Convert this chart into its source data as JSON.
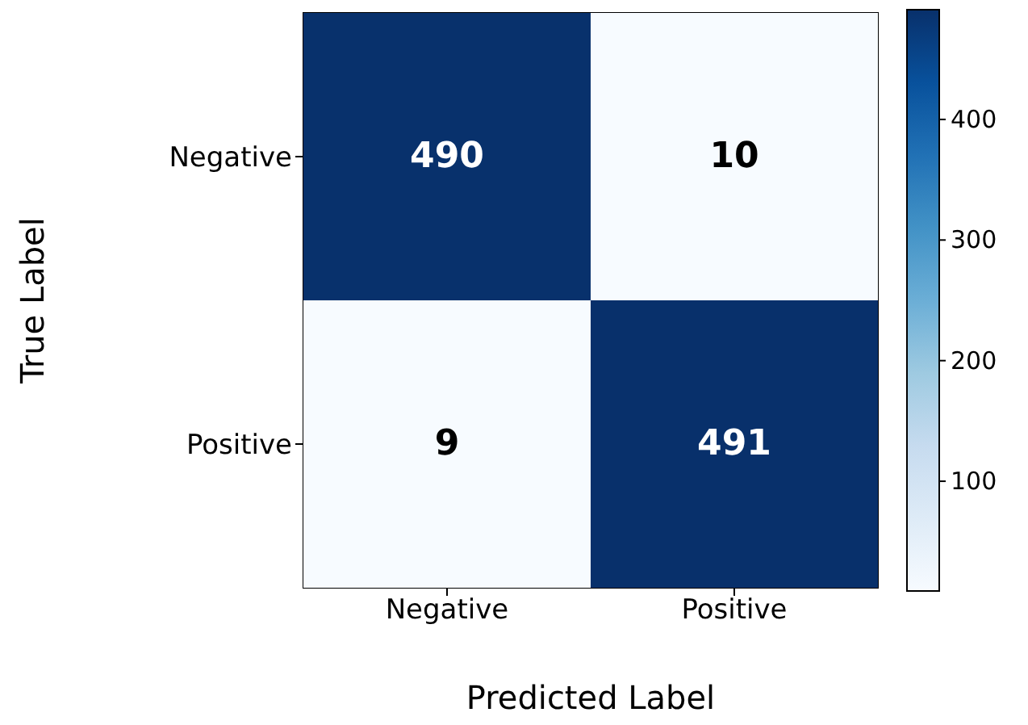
{
  "chart_data": {
    "type": "heatmap",
    "xlabel": "Predicted Label",
    "ylabel": "True Label",
    "categories": [
      "Negative",
      "Positive"
    ],
    "y_categories": [
      "Negative",
      "Positive"
    ],
    "cells": [
      [
        490,
        10
      ],
      [
        9,
        491
      ]
    ],
    "data_labels": true,
    "clim": [
      9,
      491
    ],
    "cticks": [
      100,
      200,
      300,
      400
    ]
  }
}
